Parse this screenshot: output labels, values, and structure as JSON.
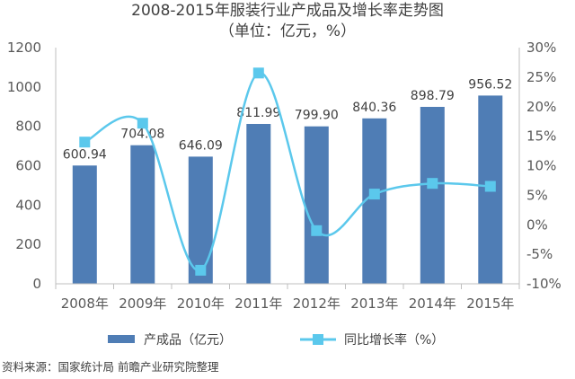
{
  "chart_data": {
    "type": "bar+line",
    "title": "2008-2015年服装行业产成品及增长率走势图",
    "subtitle": "（单位：亿元，%）",
    "categories": [
      "2008年",
      "2009年",
      "2010年",
      "2011年",
      "2012年",
      "2013年",
      "2014年",
      "2015年"
    ],
    "series": [
      {
        "name": "产成品（亿元）",
        "type": "bar",
        "axis": "left",
        "values": [
          600.94,
          704.08,
          646.09,
          811.99,
          799.9,
          840.36,
          898.79,
          956.52
        ],
        "labels": [
          "600.94",
          "704.08",
          "646.09",
          "811.99",
          "799.90",
          "840.36",
          "898.79",
          "956.52"
        ]
      },
      {
        "name": "同比增长率（%）",
        "type": "line",
        "smooth": true,
        "axis": "right",
        "values": [
          14.0,
          17.2,
          -7.7,
          25.7,
          -1.0,
          5.2,
          7.0,
          6.5
        ]
      }
    ],
    "y_left": {
      "min": 0,
      "max": 1200,
      "ticks": [
        0,
        200,
        400,
        600,
        800,
        1000,
        1200
      ],
      "tick_labels": [
        "0",
        "200",
        "400",
        "600",
        "800",
        "1000",
        "1200"
      ]
    },
    "y_right": {
      "min": -10,
      "max": 30,
      "ticks": [
        -10,
        -5,
        0,
        5,
        10,
        15,
        20,
        25,
        30
      ],
      "tick_labels": [
        "-10%",
        "-5%",
        "0%",
        "5%",
        "10%",
        "15%",
        "20%",
        "25%",
        "30%"
      ]
    },
    "grid": false,
    "legend_position": "bottom",
    "colors": {
      "bar": "#4f7db5",
      "line": "#5bc8ec",
      "axis": "#bfbfbf",
      "text": "#404040"
    }
  },
  "source": "资料来源：国家统计局 前瞻产业研究院整理"
}
